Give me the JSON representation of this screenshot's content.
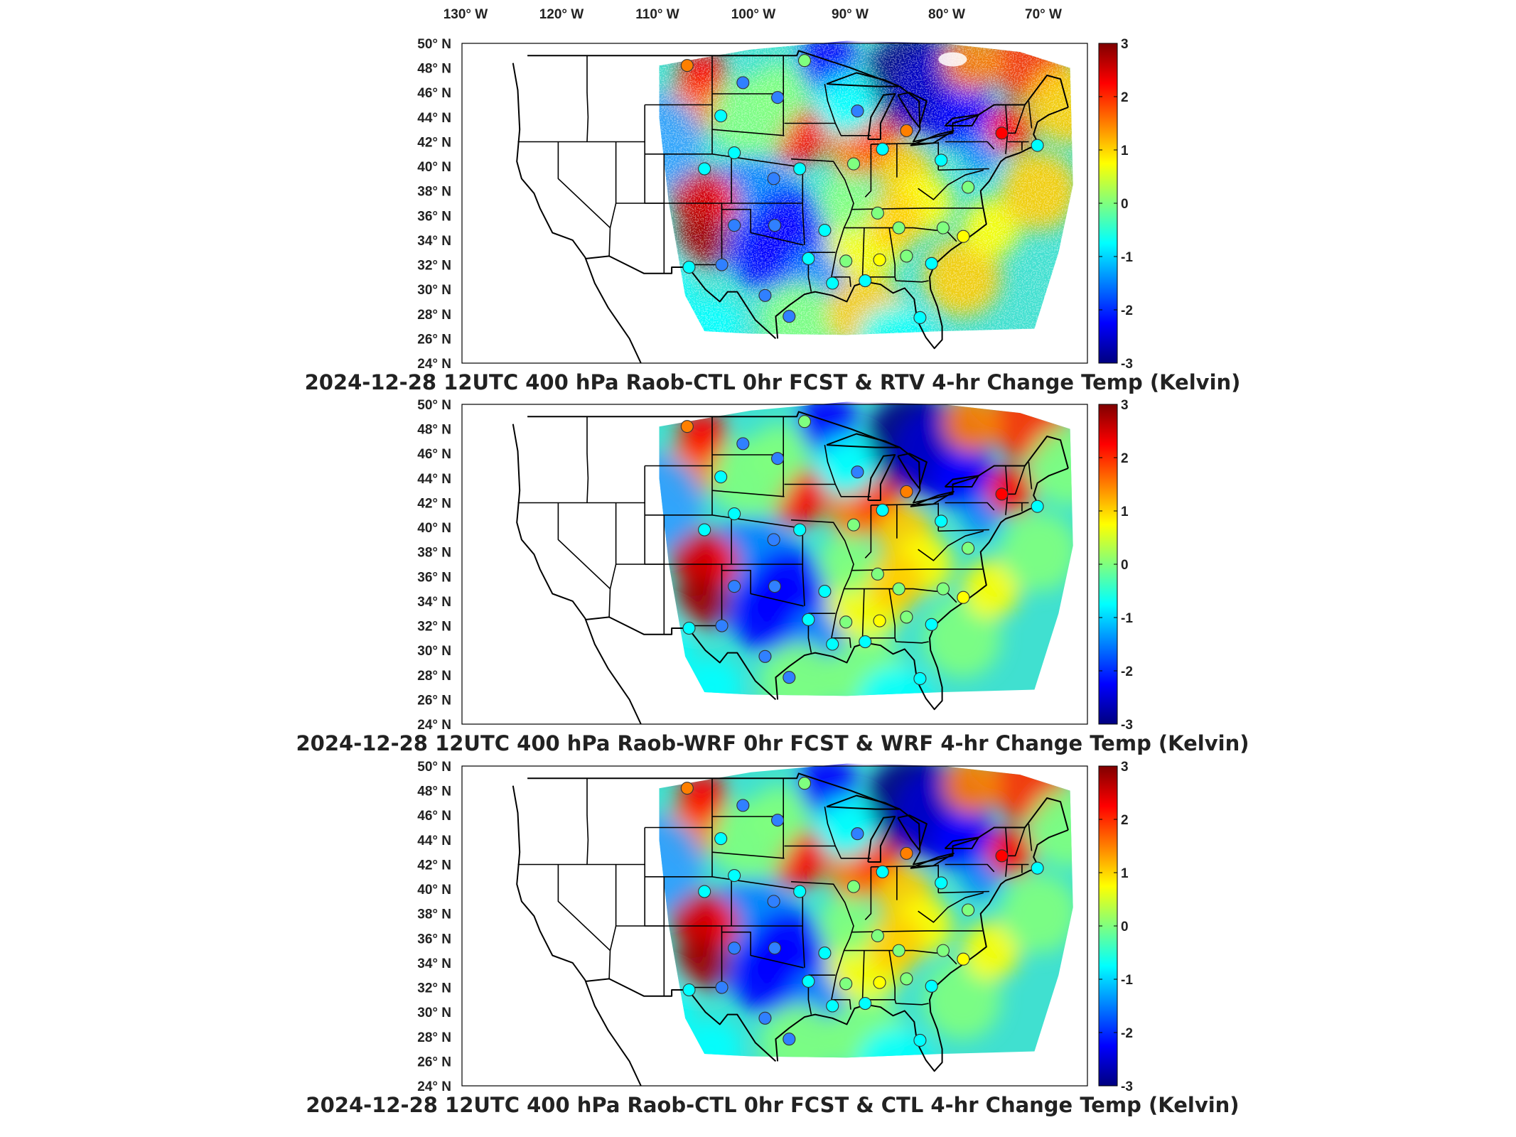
{
  "figure": {
    "lon_axis": {
      "label_values": [
        130,
        120,
        110,
        100,
        90,
        80,
        70
      ],
      "labels": [
        "130° W",
        "120° W",
        "110° W",
        "100° W",
        "90° W",
        "80° W",
        "70° W"
      ]
    },
    "lat_axis": {
      "label_values": [
        50,
        48,
        46,
        44,
        42,
        40,
        38,
        36,
        34,
        32,
        30,
        28,
        26,
        24
      ],
      "labels": [
        "50° N",
        "48° N",
        "46° N",
        "44° N",
        "42° N",
        "40° N",
        "38° N",
        "36° N",
        "34° N",
        "32° N",
        "30° N",
        "28° N",
        "26° N",
        "24° N"
      ]
    },
    "colorbar": {
      "range": [
        -3,
        3
      ],
      "tick_values": [
        3,
        2,
        1,
        0,
        -1,
        -2,
        -3
      ],
      "tick_labels": [
        "3",
        "2",
        "1",
        "0",
        "-1",
        "-2",
        "-3"
      ],
      "colormap": "jet",
      "colors": [
        "#00007f",
        "#0000ff",
        "#007fff",
        "#00ffff",
        "#7fff7f",
        "#ffff00",
        "#ff7f00",
        "#ff0000",
        "#7f0000"
      ]
    }
  },
  "panels": [
    {
      "title": "2024-12-28 12UTC 400 hPa Raob-CTL 0hr FCST & RTV 4-hr Change Temp (Kelvin)",
      "noisy": true
    },
    {
      "title": "2024-12-28 12UTC 400 hPa Raob-WRF 0hr FCST & WRF 4-hr Change Temp (Kelvin)",
      "noisy": false
    },
    {
      "title": "2024-12-28 12UTC 400 hPa Raob-CTL 0hr FCST & CTL 4-hr Change Temp (Kelvin)",
      "noisy": false
    }
  ]
}
